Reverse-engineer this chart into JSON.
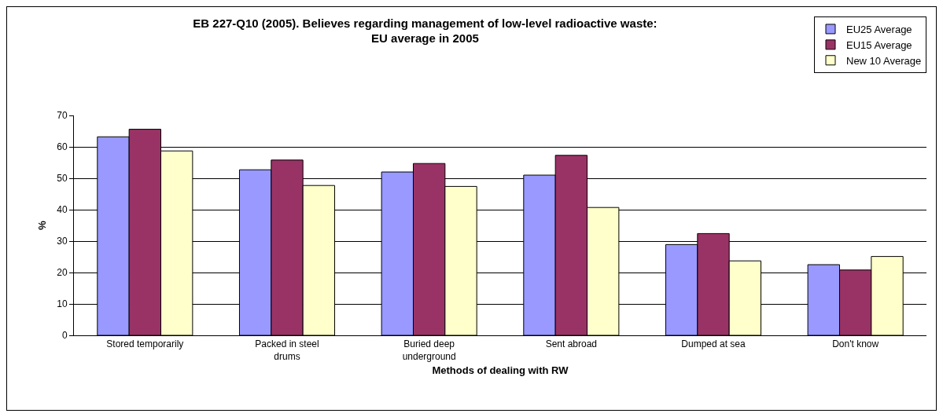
{
  "chart_data": {
    "type": "bar",
    "title": "EB 227-Q10 (2005). Believes regarding management of low-level radioactive waste:\nEU average in 2005",
    "xlabel": "Methods of dealing with RW",
    "ylabel": "%",
    "categories": [
      "Stored temporarily",
      "Packed in steel\ndrums",
      "Buried deep\nunderground",
      "Sent abroad",
      "Dumped at sea",
      "Don't know"
    ],
    "series": [
      {
        "name": "EU25 Average",
        "color": "#9999ff",
        "values": [
          63.2,
          52.7,
          52.0,
          51.0,
          28.9,
          22.5
        ]
      },
      {
        "name": "EU15 Average",
        "color": "#993366",
        "values": [
          65.6,
          55.8,
          54.7,
          57.3,
          32.4,
          20.8
        ]
      },
      {
        "name": "New 10 Average",
        "color": "#ffffcc",
        "values": [
          58.7,
          47.7,
          47.4,
          40.7,
          23.7,
          25.1
        ]
      }
    ],
    "ylim": [
      0,
      70
    ],
    "yticks": [
      0,
      10,
      20,
      30,
      40,
      50,
      60,
      70
    ],
    "grid": "y",
    "legend": "top right"
  }
}
